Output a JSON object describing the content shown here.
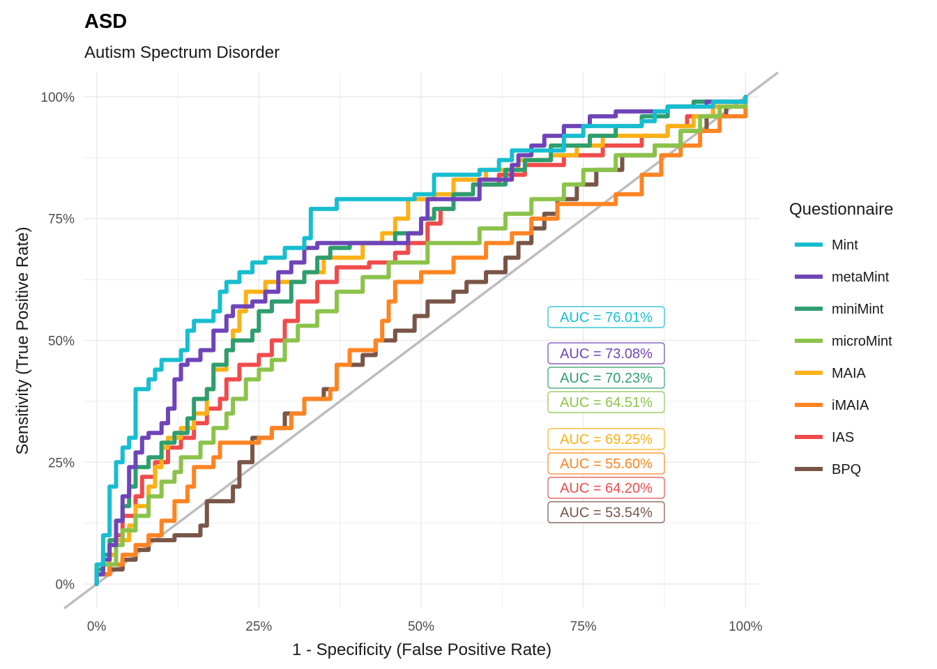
{
  "chart_data": {
    "type": "line",
    "title": "ASD",
    "subtitle": "Autism Spectrum Disorder",
    "xlabel": "1 - Specificity (False Positive Rate)",
    "ylabel": "Sensitivity (True Positive Rate)",
    "xlim": [
      -0.02,
      1.02
    ],
    "ylim": [
      -0.05,
      1.05
    ],
    "x_ticks": [
      "0%",
      "25%",
      "50%",
      "75%",
      "100%"
    ],
    "y_ticks": [
      "0%",
      "25%",
      "50%",
      "75%",
      "100%"
    ],
    "grid": true,
    "diagonal_reference": true,
    "legend": {
      "title": "Questionnaire",
      "placement": "right"
    },
    "series": [
      {
        "name": "Mint",
        "color": "#17BECF",
        "auc_label": "AUC = 76.01%",
        "points": [
          [
            0,
            0
          ],
          [
            0,
            0.04
          ],
          [
            0.01,
            0.06
          ],
          [
            0.01,
            0.1
          ],
          [
            0.02,
            0.15
          ],
          [
            0.02,
            0.2
          ],
          [
            0.03,
            0.25
          ],
          [
            0.04,
            0.28
          ],
          [
            0.05,
            0.3
          ],
          [
            0.06,
            0.34
          ],
          [
            0.06,
            0.4
          ],
          [
            0.07,
            0.4
          ],
          [
            0.08,
            0.42
          ],
          [
            0.09,
            0.44
          ],
          [
            0.1,
            0.46
          ],
          [
            0.13,
            0.48
          ],
          [
            0.14,
            0.52
          ],
          [
            0.15,
            0.54
          ],
          [
            0.18,
            0.56
          ],
          [
            0.19,
            0.6
          ],
          [
            0.2,
            0.62
          ],
          [
            0.22,
            0.64
          ],
          [
            0.24,
            0.66
          ],
          [
            0.26,
            0.67
          ],
          [
            0.29,
            0.69
          ],
          [
            0.32,
            0.71
          ],
          [
            0.33,
            0.77
          ],
          [
            0.37,
            0.79
          ],
          [
            0.49,
            0.8
          ],
          [
            0.52,
            0.84
          ],
          [
            0.59,
            0.85
          ],
          [
            0.62,
            0.87
          ],
          [
            0.64,
            0.89
          ],
          [
            0.72,
            0.92
          ],
          [
            0.75,
            0.94
          ],
          [
            0.84,
            0.95
          ],
          [
            0.86,
            0.97
          ],
          [
            0.88,
            0.98
          ],
          [
            0.95,
            0.99
          ],
          [
            1,
            1
          ]
        ]
      },
      {
        "name": "metaMint",
        "color": "#6F44B8",
        "auc_label": "AUC = 73.08%",
        "points": [
          [
            0,
            0
          ],
          [
            0,
            0.02
          ],
          [
            0.01,
            0.05
          ],
          [
            0.02,
            0.08
          ],
          [
            0.03,
            0.13
          ],
          [
            0.04,
            0.18
          ],
          [
            0.05,
            0.24
          ],
          [
            0.06,
            0.27
          ],
          [
            0.07,
            0.3
          ],
          [
            0.08,
            0.31
          ],
          [
            0.1,
            0.33
          ],
          [
            0.11,
            0.36
          ],
          [
            0.12,
            0.42
          ],
          [
            0.13,
            0.45
          ],
          [
            0.14,
            0.46
          ],
          [
            0.16,
            0.48
          ],
          [
            0.18,
            0.52
          ],
          [
            0.2,
            0.55
          ],
          [
            0.21,
            0.57
          ],
          [
            0.24,
            0.58
          ],
          [
            0.26,
            0.6
          ],
          [
            0.28,
            0.64
          ],
          [
            0.3,
            0.66
          ],
          [
            0.32,
            0.69
          ],
          [
            0.34,
            0.7
          ],
          [
            0.4,
            0.7
          ],
          [
            0.48,
            0.72
          ],
          [
            0.5,
            0.75
          ],
          [
            0.51,
            0.79
          ],
          [
            0.59,
            0.83
          ],
          [
            0.64,
            0.86
          ],
          [
            0.65,
            0.88
          ],
          [
            0.67,
            0.9
          ],
          [
            0.69,
            0.92
          ],
          [
            0.72,
            0.94
          ],
          [
            0.76,
            0.96
          ],
          [
            0.8,
            0.97
          ],
          [
            0.88,
            0.98
          ],
          [
            0.94,
            0.99
          ],
          [
            1,
            1
          ]
        ]
      },
      {
        "name": "miniMint",
        "color": "#2E9E6E",
        "auc_label": "AUC = 70.23%",
        "points": [
          [
            0,
            0
          ],
          [
            0,
            0.03
          ],
          [
            0.01,
            0.06
          ],
          [
            0.02,
            0.09
          ],
          [
            0.03,
            0.13
          ],
          [
            0.04,
            0.16
          ],
          [
            0.05,
            0.2
          ],
          [
            0.06,
            0.24
          ],
          [
            0.08,
            0.26
          ],
          [
            0.1,
            0.29
          ],
          [
            0.12,
            0.31
          ],
          [
            0.14,
            0.34
          ],
          [
            0.15,
            0.38
          ],
          [
            0.17,
            0.4
          ],
          [
            0.18,
            0.45
          ],
          [
            0.2,
            0.48
          ],
          [
            0.21,
            0.5
          ],
          [
            0.24,
            0.52
          ],
          [
            0.25,
            0.56
          ],
          [
            0.27,
            0.58
          ],
          [
            0.3,
            0.62
          ],
          [
            0.32,
            0.64
          ],
          [
            0.34,
            0.67
          ],
          [
            0.36,
            0.69
          ],
          [
            0.39,
            0.7
          ],
          [
            0.46,
            0.72
          ],
          [
            0.5,
            0.75
          ],
          [
            0.52,
            0.77
          ],
          [
            0.55,
            0.8
          ],
          [
            0.58,
            0.82
          ],
          [
            0.63,
            0.85
          ],
          [
            0.66,
            0.87
          ],
          [
            0.7,
            0.9
          ],
          [
            0.76,
            0.92
          ],
          [
            0.8,
            0.94
          ],
          [
            0.84,
            0.96
          ],
          [
            0.88,
            0.98
          ],
          [
            0.92,
            0.99
          ],
          [
            1,
            1
          ]
        ]
      },
      {
        "name": "microMint",
        "color": "#8BC34A",
        "auc_label": "AUC = 64.51%",
        "points": [
          [
            0,
            0
          ],
          [
            0,
            0.02
          ],
          [
            0.01,
            0.04
          ],
          [
            0.03,
            0.08
          ],
          [
            0.04,
            0.11
          ],
          [
            0.06,
            0.14
          ],
          [
            0.08,
            0.18
          ],
          [
            0.1,
            0.21
          ],
          [
            0.12,
            0.23
          ],
          [
            0.13,
            0.26
          ],
          [
            0.16,
            0.29
          ],
          [
            0.18,
            0.32
          ],
          [
            0.2,
            0.35
          ],
          [
            0.21,
            0.38
          ],
          [
            0.23,
            0.42
          ],
          [
            0.25,
            0.44
          ],
          [
            0.27,
            0.46
          ],
          [
            0.29,
            0.5
          ],
          [
            0.31,
            0.53
          ],
          [
            0.34,
            0.56
          ],
          [
            0.37,
            0.6
          ],
          [
            0.41,
            0.63
          ],
          [
            0.45,
            0.66
          ],
          [
            0.51,
            0.7
          ],
          [
            0.59,
            0.73
          ],
          [
            0.63,
            0.76
          ],
          [
            0.67,
            0.79
          ],
          [
            0.72,
            0.82
          ],
          [
            0.75,
            0.85
          ],
          [
            0.8,
            0.88
          ],
          [
            0.86,
            0.9
          ],
          [
            0.9,
            0.93
          ],
          [
            0.93,
            0.96
          ],
          [
            0.96,
            0.98
          ],
          [
            1,
            1
          ]
        ]
      },
      {
        "name": "MAIA",
        "color": "#FBB117",
        "auc_label": "AUC = 69.25%",
        "points": [
          [
            0,
            0
          ],
          [
            0,
            0.04
          ],
          [
            0.02,
            0.06
          ],
          [
            0.03,
            0.09
          ],
          [
            0.05,
            0.12
          ],
          [
            0.06,
            0.16
          ],
          [
            0.08,
            0.2
          ],
          [
            0.09,
            0.24
          ],
          [
            0.1,
            0.28
          ],
          [
            0.11,
            0.3
          ],
          [
            0.13,
            0.32
          ],
          [
            0.15,
            0.35
          ],
          [
            0.17,
            0.4
          ],
          [
            0.18,
            0.44
          ],
          [
            0.2,
            0.48
          ],
          [
            0.21,
            0.52
          ],
          [
            0.22,
            0.56
          ],
          [
            0.23,
            0.6
          ],
          [
            0.26,
            0.62
          ],
          [
            0.3,
            0.62
          ],
          [
            0.32,
            0.64
          ],
          [
            0.35,
            0.67
          ],
          [
            0.41,
            0.7
          ],
          [
            0.44,
            0.72
          ],
          [
            0.46,
            0.75
          ],
          [
            0.48,
            0.79
          ],
          [
            0.52,
            0.8
          ],
          [
            0.55,
            0.83
          ],
          [
            0.6,
            0.85
          ],
          [
            0.65,
            0.87
          ],
          [
            0.7,
            0.88
          ],
          [
            0.74,
            0.9
          ],
          [
            0.78,
            0.92
          ],
          [
            0.88,
            0.94
          ],
          [
            0.92,
            0.96
          ],
          [
            0.95,
            0.98
          ],
          [
            1,
            1
          ]
        ]
      },
      {
        "name": "iMAIA",
        "color": "#FF8422",
        "auc_label": "AUC = 55.60%",
        "points": [
          [
            0,
            0
          ],
          [
            0,
            0.02
          ],
          [
            0.02,
            0.04
          ],
          [
            0.04,
            0.06
          ],
          [
            0.06,
            0.08
          ],
          [
            0.08,
            0.1
          ],
          [
            0.1,
            0.13
          ],
          [
            0.12,
            0.17
          ],
          [
            0.14,
            0.2
          ],
          [
            0.15,
            0.24
          ],
          [
            0.18,
            0.26
          ],
          [
            0.19,
            0.29
          ],
          [
            0.25,
            0.3
          ],
          [
            0.27,
            0.32
          ],
          [
            0.3,
            0.35
          ],
          [
            0.32,
            0.38
          ],
          [
            0.36,
            0.4
          ],
          [
            0.37,
            0.45
          ],
          [
            0.39,
            0.48
          ],
          [
            0.43,
            0.5
          ],
          [
            0.44,
            0.54
          ],
          [
            0.45,
            0.58
          ],
          [
            0.46,
            0.62
          ],
          [
            0.5,
            0.64
          ],
          [
            0.55,
            0.67
          ],
          [
            0.6,
            0.7
          ],
          [
            0.64,
            0.72
          ],
          [
            0.67,
            0.75
          ],
          [
            0.71,
            0.78
          ],
          [
            0.8,
            0.8
          ],
          [
            0.84,
            0.84
          ],
          [
            0.87,
            0.88
          ],
          [
            0.9,
            0.9
          ],
          [
            0.93,
            0.93
          ],
          [
            0.96,
            0.96
          ],
          [
            1,
            1
          ]
        ]
      },
      {
        "name": "IAS",
        "color": "#F04B4B",
        "auc_label": "AUC = 64.20%",
        "points": [
          [
            0,
            0
          ],
          [
            0,
            0.02
          ],
          [
            0.02,
            0.06
          ],
          [
            0.03,
            0.1
          ],
          [
            0.04,
            0.14
          ],
          [
            0.06,
            0.18
          ],
          [
            0.07,
            0.22
          ],
          [
            0.09,
            0.25
          ],
          [
            0.11,
            0.28
          ],
          [
            0.13,
            0.3
          ],
          [
            0.15,
            0.33
          ],
          [
            0.17,
            0.36
          ],
          [
            0.19,
            0.38
          ],
          [
            0.2,
            0.42
          ],
          [
            0.22,
            0.45
          ],
          [
            0.25,
            0.47
          ],
          [
            0.27,
            0.5
          ],
          [
            0.29,
            0.54
          ],
          [
            0.31,
            0.58
          ],
          [
            0.34,
            0.62
          ],
          [
            0.37,
            0.65
          ],
          [
            0.42,
            0.66
          ],
          [
            0.46,
            0.68
          ],
          [
            0.48,
            0.7
          ],
          [
            0.51,
            0.74
          ],
          [
            0.53,
            0.77
          ],
          [
            0.55,
            0.8
          ],
          [
            0.58,
            0.82
          ],
          [
            0.62,
            0.84
          ],
          [
            0.66,
            0.86
          ],
          [
            0.72,
            0.88
          ],
          [
            0.78,
            0.9
          ],
          [
            0.84,
            0.92
          ],
          [
            0.88,
            0.94
          ],
          [
            0.91,
            0.96
          ],
          [
            0.95,
            0.98
          ],
          [
            1,
            1
          ]
        ]
      },
      {
        "name": "BPQ",
        "color": "#795548",
        "auc_label": "AUC = 53.54%",
        "points": [
          [
            0,
            0
          ],
          [
            0,
            0.02
          ],
          [
            0.02,
            0.03
          ],
          [
            0.04,
            0.05
          ],
          [
            0.06,
            0.07
          ],
          [
            0.08,
            0.09
          ],
          [
            0.12,
            0.1
          ],
          [
            0.16,
            0.12
          ],
          [
            0.17,
            0.17
          ],
          [
            0.21,
            0.2
          ],
          [
            0.22,
            0.25
          ],
          [
            0.24,
            0.3
          ],
          [
            0.27,
            0.32
          ],
          [
            0.29,
            0.35
          ],
          [
            0.32,
            0.38
          ],
          [
            0.35,
            0.4
          ],
          [
            0.37,
            0.45
          ],
          [
            0.41,
            0.47
          ],
          [
            0.43,
            0.5
          ],
          [
            0.46,
            0.52
          ],
          [
            0.49,
            0.55
          ],
          [
            0.51,
            0.58
          ],
          [
            0.55,
            0.6
          ],
          [
            0.57,
            0.62
          ],
          [
            0.6,
            0.64
          ],
          [
            0.63,
            0.67
          ],
          [
            0.65,
            0.7
          ],
          [
            0.67,
            0.73
          ],
          [
            0.69,
            0.76
          ],
          [
            0.71,
            0.79
          ],
          [
            0.74,
            0.82
          ],
          [
            0.77,
            0.85
          ],
          [
            0.81,
            0.88
          ],
          [
            0.86,
            0.9
          ],
          [
            0.9,
            0.93
          ],
          [
            0.94,
            0.96
          ],
          [
            0.97,
            0.98
          ],
          [
            1,
            1
          ]
        ]
      }
    ]
  }
}
